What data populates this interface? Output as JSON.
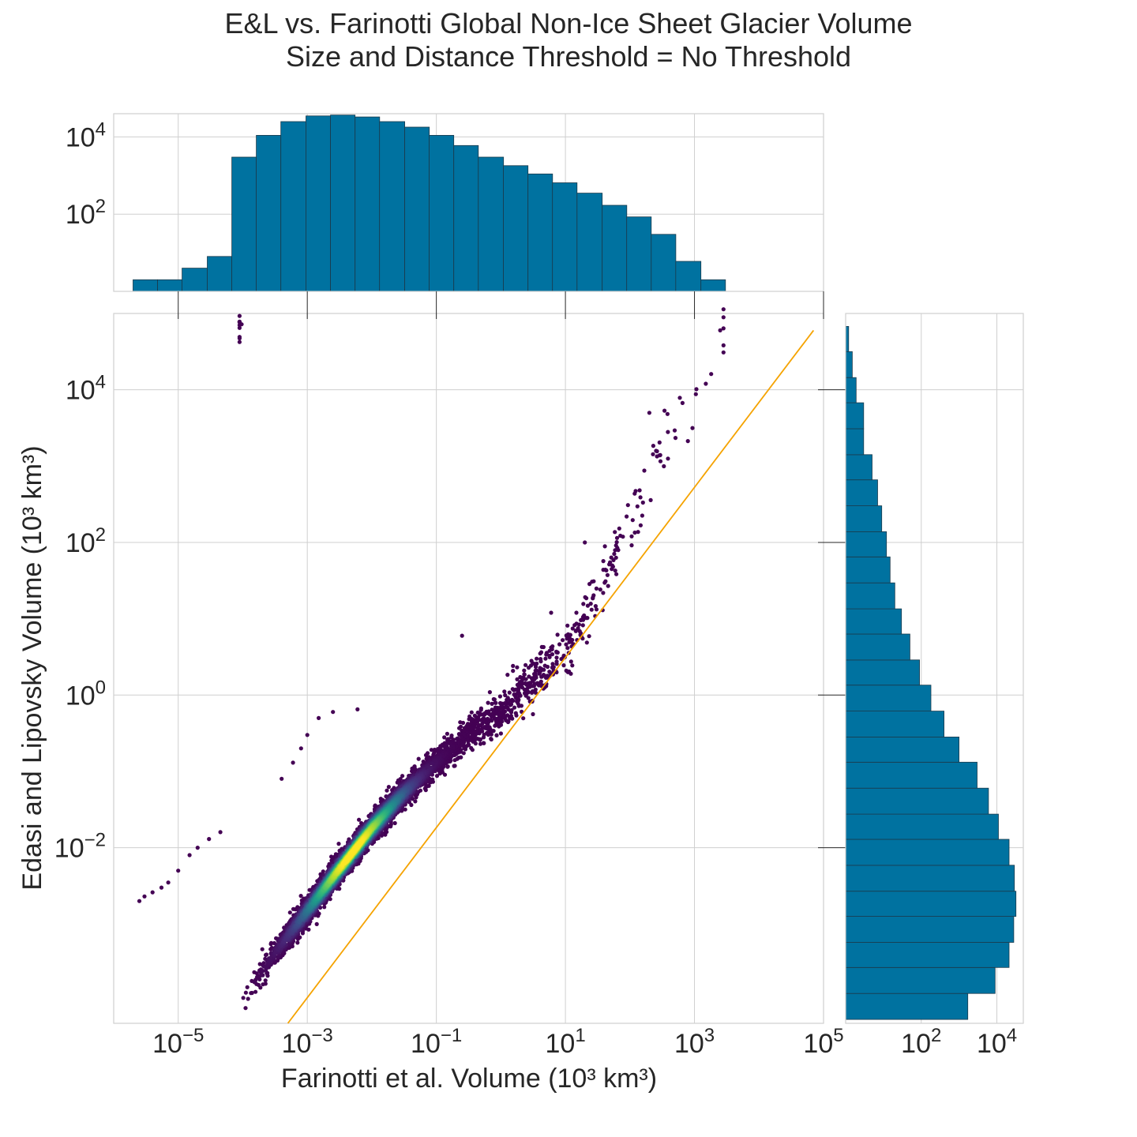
{
  "title": {
    "line1": "E&L vs. Farinotti Global Non-Ice Sheet Glacier Volume",
    "line2": "Size and Distance Threshold = No Threshold"
  },
  "chart_data": [
    {
      "type": "scatter",
      "panel": "main",
      "xlabel": "Farinotti et al. Volume (10³ km³)",
      "ylabel": "Edasi and Lipovsky Volume (10³ km³)",
      "xscale": "log",
      "yscale": "log",
      "xlim": [
        1e-06,
        100000.0
      ],
      "ylim": [
        5e-05,
        100000.0
      ],
      "x_ticks": [
        {
          "base": "10",
          "exp": "−5",
          "value": 1e-05
        },
        {
          "base": "10",
          "exp": "−3",
          "value": 0.001
        },
        {
          "base": "10",
          "exp": "−1",
          "value": 0.1
        },
        {
          "base": "10",
          "exp": "1",
          "value": 10.0
        },
        {
          "base": "10",
          "exp": "3",
          "value": 1000.0
        },
        {
          "base": "10",
          "exp": "5",
          "value": 100000.0
        }
      ],
      "y_ticks": [
        {
          "base": "10",
          "exp": "−2",
          "value": 0.01
        },
        {
          "base": "10",
          "exp": "0",
          "value": 1
        },
        {
          "base": "10",
          "exp": "2",
          "value": 100.0
        },
        {
          "base": "10",
          "exp": "4",
          "value": 10000.0
        }
      ],
      "colormap": "viridis",
      "density_ridge": [
        [
          0.0001,
          0.0001
        ],
        [
          0.0003,
          0.0004
        ],
        [
          0.001,
          0.0015
        ],
        [
          0.003,
          0.005
        ],
        [
          0.01,
          0.018
        ],
        [
          0.03,
          0.05
        ],
        [
          0.1,
          0.13
        ],
        [
          0.3,
          0.3
        ],
        [
          1,
          0.6
        ],
        [
          3,
          1.5
        ],
        [
          10.0,
          4
        ],
        [
          30.0,
          20.0
        ],
        [
          100.0,
          150.0
        ],
        [
          300.0,
          1500.0
        ],
        [
          1000.0,
          10000.0
        ],
        [
          3000.0,
          60000.0
        ]
      ],
      "outlier_points": [
        [
          2.5e-06,
          0.002
        ],
        [
          3e-06,
          0.0023
        ],
        [
          4e-06,
          0.0026
        ],
        [
          5.5e-06,
          0.003
        ],
        [
          7e-06,
          0.0035
        ],
        [
          1e-05,
          0.005
        ],
        [
          1.5e-05,
          0.008
        ],
        [
          2e-05,
          0.01
        ],
        [
          3e-05,
          0.013
        ],
        [
          4.5e-05,
          0.016
        ],
        [
          0.0004,
          0.08
        ],
        [
          0.0006,
          0.13
        ],
        [
          0.0008,
          0.2
        ],
        [
          0.001,
          0.3
        ],
        [
          0.0015,
          0.5
        ],
        [
          0.0025,
          0.6
        ],
        [
          0.006,
          0.65
        ],
        [
          0.25,
          6
        ],
        [
          6,
          12
        ],
        [
          20,
          100
        ],
        [
          200,
          5000
        ],
        [
          1500,
          12000
        ],
        [
          2500,
          60000
        ]
      ],
      "fit_line": {
        "color": "#f5a300",
        "x": [
          0.0005,
          70000.0
        ],
        "y": [
          5e-05,
          60000.0
        ]
      }
    },
    {
      "type": "bar",
      "panel": "top-histogram",
      "xscale": "log",
      "yscale": "log",
      "ylim": [
        1,
        40000
      ],
      "y_ticks": [
        {
          "base": "10",
          "exp": "2",
          "value": 100
        },
        {
          "base": "10",
          "exp": "4",
          "value": 10000
        }
      ],
      "bin_edges_log10": [
        -5.7,
        -5.32,
        -4.94,
        -4.55,
        -4.17,
        -3.79,
        -3.41,
        -3.02,
        -2.64,
        -2.26,
        -1.88,
        -1.49,
        -1.11,
        -0.73,
        -0.35,
        0.04,
        0.42,
        0.8,
        1.18,
        1.57,
        1.95,
        2.33,
        2.71,
        3.1,
        3.48
      ],
      "counts": [
        2,
        2,
        4,
        8,
        3000,
        11000,
        25000,
        35000,
        37000,
        33000,
        25000,
        18000,
        11000,
        6000,
        3000,
        1800,
        1100,
        650,
        350,
        170,
        85,
        30,
        6,
        2
      ]
    },
    {
      "type": "bar",
      "panel": "right-histogram",
      "orientation": "horizontal",
      "xscale": "log",
      "yscale": "log",
      "xlim": [
        1,
        50000
      ],
      "x_ticks": [
        {
          "base": "10",
          "exp": "2",
          "value": 100
        },
        {
          "base": "10",
          "exp": "4",
          "value": 10000
        }
      ],
      "bin_edges_log10": [
        -4.25,
        -3.91,
        -3.57,
        -3.24,
        -2.9,
        -2.57,
        -2.23,
        -1.89,
        -1.56,
        -1.22,
        -0.88,
        -0.55,
        -0.21,
        0.13,
        0.46,
        0.8,
        1.13,
        1.47,
        1.81,
        2.14,
        2.48,
        2.82,
        3.15,
        3.49,
        3.83,
        4.16,
        4.5,
        4.83
      ],
      "counts": [
        1700,
        9000,
        21000,
        28000,
        32000,
        29000,
        21000,
        11000,
        6000,
        3000,
        1000,
        400,
        180,
        90,
        50,
        30,
        20,
        15,
        12,
        9,
        7,
        5,
        3,
        3,
        1.9,
        1.5,
        1.2
      ]
    }
  ]
}
